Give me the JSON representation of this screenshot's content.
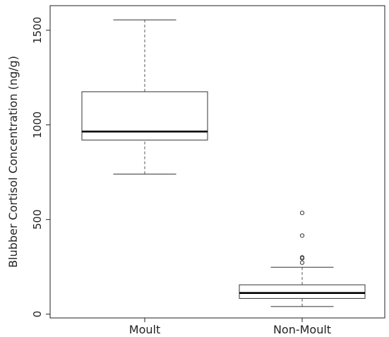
{
  "chart_data": {
    "type": "boxplot",
    "title": "",
    "xlabel": "",
    "ylabel": "Blubber Cortisol Concentration (ng/g)",
    "ylim": [
      -20,
      1630
    ],
    "yticks": [
      0,
      500,
      1000,
      1500
    ],
    "grid": false,
    "categories": [
      "Moult",
      "Non-Moult"
    ],
    "boxes": [
      {
        "category": "Moult",
        "whisker_low": 740,
        "q1": 920,
        "median": 965,
        "q3": 1175,
        "whisker_high": 1555,
        "outliers": []
      },
      {
        "category": "Non-Moult",
        "whisker_low": 40,
        "q1": 83,
        "median": 112,
        "q3": 155,
        "whisker_high": 248,
        "outliers": [
          272,
          295,
          300,
          415,
          535
        ]
      }
    ]
  }
}
